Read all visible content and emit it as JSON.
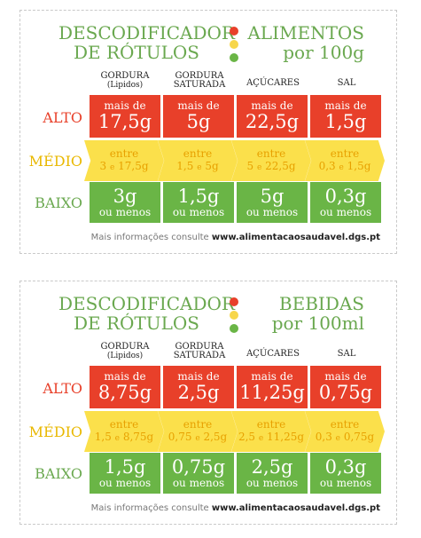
{
  "labels": {
    "header_left_line1": "DESCODIFICADOR",
    "header_left_line2": "DE RÓTULOS",
    "footer_text": "Mais informações consulte",
    "footer_url": "www.alimentacaosaudavel.dgs.pt",
    "columns": [
      "GORDURA (Lipidos)",
      "GORDURA SATURADA",
      "AÇÚCARES",
      "SAL"
    ],
    "rows": [
      "ALTO",
      "MÉDIO",
      "BAIXO"
    ],
    "connector": "e",
    "high_prefix": "mais de",
    "medium_prefix": "entre",
    "low_suffix": "ou menos"
  },
  "card_food": {
    "title": "ALIMENTOS",
    "subtitle": "por 100g",
    "alto": [
      "17,5g",
      "5g",
      "22,5g",
      "1,5g"
    ],
    "medio": [
      [
        "3",
        "17,5g"
      ],
      [
        "1,5",
        "5g"
      ],
      [
        "5",
        "22,5g"
      ],
      [
        "0,3",
        "1,5g"
      ]
    ],
    "baixo": [
      "3g",
      "1,5g",
      "5g",
      "0,3g"
    ]
  },
  "card_drink": {
    "title": "BEBIDAS",
    "subtitle": "por 100ml",
    "alto": [
      "8,75g",
      "2,5g",
      "11,25g",
      "0,75g"
    ],
    "medio": [
      [
        "1,5",
        "8,75g"
      ],
      [
        "0,75",
        "2,5g"
      ],
      [
        "2,5",
        "11,25g"
      ],
      [
        "0,3",
        "0,75g"
      ]
    ],
    "baixo": [
      "1,5g",
      "0,75g",
      "2,5g",
      "0,3g"
    ]
  },
  "colors": {
    "red": "#e8402a",
    "yellow": "#fbe04b",
    "green": "#6ab546",
    "title_green": "#6aa84f"
  },
  "icons": [
    "traffic-light-red-icon",
    "traffic-light-yellow-icon",
    "traffic-light-green-icon"
  ]
}
